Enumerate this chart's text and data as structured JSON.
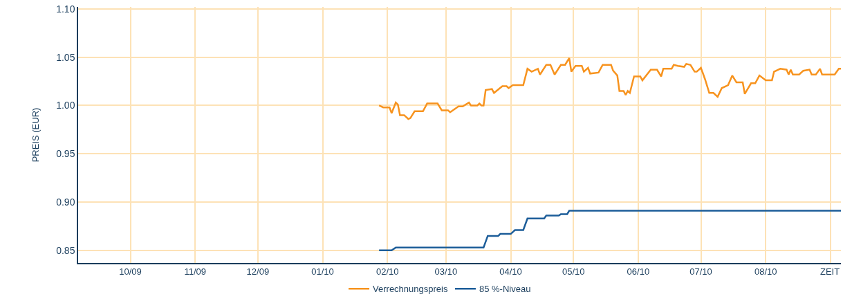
{
  "chart_data": {
    "type": "line",
    "ylabel": "PREIS (EUR)",
    "xlabel": "ZEIT",
    "xlim": [
      "2009-09-06",
      "2010-09-06"
    ],
    "xticks": [
      {
        "value": "2009-10-01",
        "label": "10/09"
      },
      {
        "value": "2009-11-01",
        "label": "11/09"
      },
      {
        "value": "2009-12-01",
        "label": "12/09"
      },
      {
        "value": "2010-01-01",
        "label": "01/10"
      },
      {
        "value": "2010-02-01",
        "label": "02/10"
      },
      {
        "value": "2010-03-01",
        "label": "03/10"
      },
      {
        "value": "2010-04-01",
        "label": "04/10"
      },
      {
        "value": "2010-05-01",
        "label": "05/10"
      },
      {
        "value": "2010-06-01",
        "label": "06/10"
      },
      {
        "value": "2010-07-01",
        "label": "07/10"
      },
      {
        "value": "2010-08-01",
        "label": "08/10"
      },
      {
        "value": "2010-09-01",
        "label": null
      }
    ],
    "ylim": [
      0.837,
      1.102
    ],
    "yticks": [
      {
        "value": 0.85,
        "label": "0.85"
      },
      {
        "value": 0.9,
        "label": "0.90"
      },
      {
        "value": 0.95,
        "label": "0.95"
      },
      {
        "value": 1.0,
        "label": "1.00"
      },
      {
        "value": 1.05,
        "label": "1.05"
      },
      {
        "value": 1.1,
        "label": "1.10"
      }
    ],
    "grid": true,
    "legend": "bottom left",
    "marker": "none",
    "line_style": "solid",
    "series": [
      {
        "name": "Verrechnungspreis",
        "color": "#f7931e",
        "x": [
          "2010-01-28",
          "2010-01-30",
          "2010-02-02",
          "2010-02-03",
          "2010-02-05",
          "2010-02-06",
          "2010-02-07",
          "2010-02-09",
          "2010-02-11",
          "2010-02-12",
          "2010-02-14",
          "2010-02-18",
          "2010-02-20",
          "2010-02-25",
          "2010-02-27",
          "2010-03-02",
          "2010-03-03",
          "2010-03-05",
          "2010-03-07",
          "2010-03-09",
          "2010-03-12",
          "2010-03-13",
          "2010-03-16",
          "2010-03-17",
          "2010-03-18",
          "2010-03-19",
          "2010-03-20",
          "2010-03-23",
          "2010-03-24",
          "2010-03-28",
          "2010-03-30",
          "2010-03-31",
          "2010-04-02",
          "2010-04-07",
          "2010-04-09",
          "2010-04-11",
          "2010-04-14",
          "2010-04-15",
          "2010-04-18",
          "2010-04-20",
          "2010-04-22",
          "2010-04-25",
          "2010-04-27",
          "2010-04-29",
          "2010-04-30",
          "2010-05-02",
          "2010-05-05",
          "2010-05-06",
          "2010-05-08",
          "2010-05-09",
          "2010-05-13",
          "2010-05-15",
          "2010-05-19",
          "2010-05-20",
          "2010-05-22",
          "2010-05-23",
          "2010-05-25",
          "2010-05-26",
          "2010-05-27",
          "2010-05-28",
          "2010-05-30",
          "2010-06-02",
          "2010-06-03",
          "2010-06-07",
          "2010-06-10",
          "2010-06-12",
          "2010-06-13",
          "2010-06-17",
          "2010-06-18",
          "2010-06-20",
          "2010-06-23",
          "2010-06-24",
          "2010-06-26",
          "2010-06-28",
          "2010-06-29",
          "2010-07-01",
          "2010-07-03",
          "2010-07-05",
          "2010-07-07",
          "2010-07-09",
          "2010-07-11",
          "2010-07-14",
          "2010-07-16",
          "2010-07-18",
          "2010-07-21",
          "2010-07-22",
          "2010-07-25",
          "2010-07-27",
          "2010-07-29",
          "2010-08-01",
          "2010-08-04",
          "2010-08-05",
          "2010-08-08",
          "2010-08-11",
          "2010-08-12",
          "2010-08-13",
          "2010-08-14",
          "2010-08-17",
          "2010-08-19",
          "2010-08-22",
          "2010-08-23",
          "2010-08-25",
          "2010-08-27",
          "2010-08-28",
          "2010-09-03",
          "2010-09-04",
          "2010-09-05",
          "2010-09-06"
        ],
        "values": [
          1.0,
          0.998,
          0.998,
          0.992,
          1.003,
          1.001,
          0.99,
          0.99,
          0.986,
          0.987,
          0.994,
          0.994,
          1.002,
          1.002,
          0.995,
          0.995,
          0.993,
          0.996,
          0.999,
          0.999,
          1.003,
          1.0,
          1.0,
          1.002,
          1.0,
          1.0,
          1.016,
          1.017,
          1.013,
          1.02,
          1.02,
          1.018,
          1.021,
          1.021,
          1.038,
          1.035,
          1.038,
          1.032,
          1.042,
          1.042,
          1.032,
          1.042,
          1.042,
          1.049,
          1.035,
          1.041,
          1.041,
          1.035,
          1.039,
          1.033,
          1.034,
          1.042,
          1.042,
          1.036,
          1.031,
          1.015,
          1.015,
          1.011,
          1.015,
          1.013,
          1.03,
          1.03,
          1.026,
          1.037,
          1.037,
          1.03,
          1.038,
          1.038,
          1.042,
          1.041,
          1.04,
          1.043,
          1.042,
          1.035,
          1.035,
          1.039,
          1.027,
          1.013,
          1.013,
          1.009,
          1.018,
          1.021,
          1.031,
          1.024,
          1.024,
          1.012,
          1.023,
          1.023,
          1.031,
          1.026,
          1.026,
          1.035,
          1.038,
          1.037,
          1.032,
          1.037,
          1.032,
          1.032,
          1.036,
          1.037,
          1.032,
          1.032,
          1.038,
          1.032,
          1.032,
          1.035,
          1.038,
          1.038
        ]
      },
      {
        "name": "85 %-Niveau",
        "color": "#1c5d99",
        "x": [
          "2010-01-28",
          "2010-02-03",
          "2010-02-05",
          "2010-03-19",
          "2010-03-21",
          "2010-03-26",
          "2010-03-27",
          "2010-04-01",
          "2010-04-03",
          "2010-04-07",
          "2010-04-09",
          "2010-04-17",
          "2010-04-18",
          "2010-04-24",
          "2010-04-25",
          "2010-04-28",
          "2010-04-29",
          "2010-09-06"
        ],
        "values": [
          0.85,
          0.85,
          0.853,
          0.853,
          0.865,
          0.865,
          0.867,
          0.867,
          0.871,
          0.871,
          0.883,
          0.883,
          0.886,
          0.886,
          0.8875,
          0.8875,
          0.891,
          0.891
        ]
      }
    ]
  }
}
